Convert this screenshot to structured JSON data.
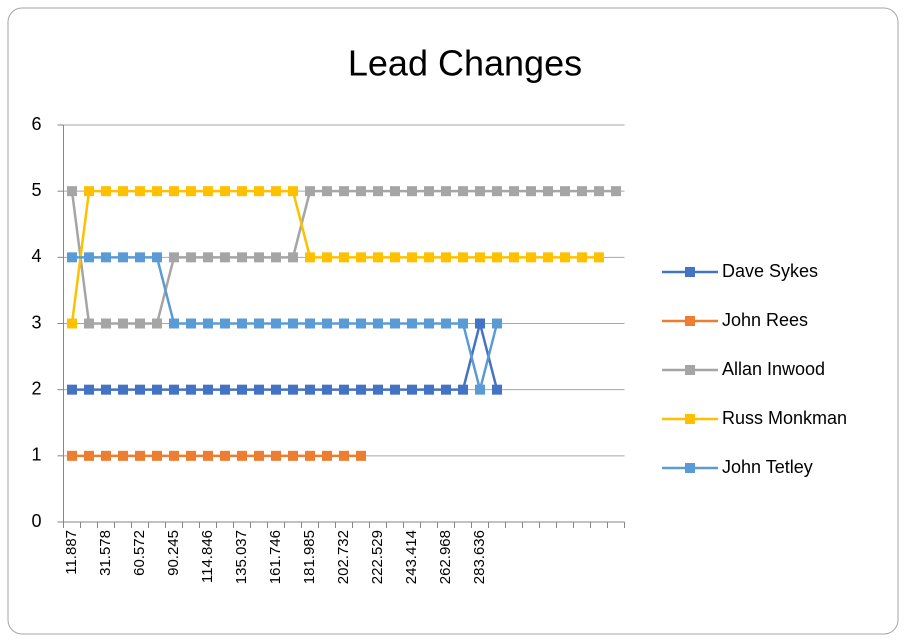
{
  "chart_data": {
    "type": "line",
    "title": "Lead Changes",
    "categories": [
      "11.887",
      null,
      "31.578",
      null,
      "60.572",
      null,
      "90.245",
      null,
      "114.846",
      null,
      "135.037",
      null,
      "161.746",
      null,
      "181.985",
      null,
      "202.732",
      null,
      "222.529",
      null,
      "243.414",
      null,
      "262.968",
      null,
      "283.636",
      null,
      null,
      null,
      null,
      null,
      null,
      null,
      null
    ],
    "ylim": [
      0,
      6
    ],
    "yticks": [
      0,
      1,
      2,
      3,
      4,
      5,
      6
    ],
    "grid": true,
    "legend": "right",
    "series": [
      {
        "name": "Dave Sykes",
        "color": "#4472c4",
        "values": [
          2,
          2,
          2,
          2,
          2,
          2,
          2,
          2,
          2,
          2,
          2,
          2,
          2,
          2,
          2,
          2,
          2,
          2,
          2,
          2,
          2,
          2,
          2,
          2,
          3,
          2,
          null,
          null,
          null,
          null,
          null,
          null,
          null
        ]
      },
      {
        "name": "John Rees",
        "color": "#ed7d31",
        "values": [
          1,
          1,
          1,
          1,
          1,
          1,
          1,
          1,
          1,
          1,
          1,
          1,
          1,
          1,
          1,
          1,
          1,
          1,
          null,
          null,
          null,
          null,
          null,
          null,
          null,
          null,
          null,
          null,
          null,
          null,
          null,
          null,
          null
        ]
      },
      {
        "name": "Allan Inwood",
        "color": "#a5a5a5",
        "values": [
          5,
          3,
          3,
          3,
          3,
          3,
          4,
          4,
          4,
          4,
          4,
          4,
          4,
          4,
          5,
          5,
          5,
          5,
          5,
          5,
          5,
          5,
          5,
          5,
          5,
          5,
          5,
          5,
          5,
          5,
          5,
          5,
          5
        ]
      },
      {
        "name": "Russ Monkman",
        "color": "#ffc000",
        "values": [
          3,
          5,
          5,
          5,
          5,
          5,
          5,
          5,
          5,
          5,
          5,
          5,
          5,
          5,
          4,
          4,
          4,
          4,
          4,
          4,
          4,
          4,
          4,
          4,
          4,
          4,
          4,
          4,
          4,
          4,
          4,
          4,
          null
        ]
      },
      {
        "name": "John Tetley",
        "color": "#5b9bd5",
        "values": [
          4,
          4,
          4,
          4,
          4,
          4,
          3,
          3,
          3,
          3,
          3,
          3,
          3,
          3,
          3,
          3,
          3,
          3,
          3,
          3,
          3,
          3,
          3,
          3,
          2,
          3,
          null,
          null,
          null,
          null,
          null,
          null,
          null
        ]
      }
    ]
  }
}
